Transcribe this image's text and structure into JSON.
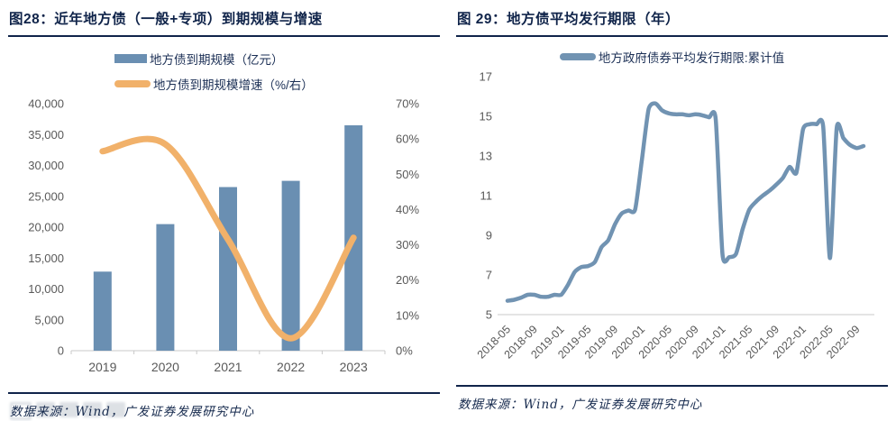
{
  "source": "数据来源：Wind，广发证券发展研究中心",
  "colors": {
    "navy": "#10244a",
    "bar_blue": "#6a8fb2",
    "orange": "#f1b16a",
    "line_blue": "#7193b2",
    "tick_gray": "#595959",
    "axis_gray": "#c8c8c8"
  },
  "chart_data": [
    {
      "id": "left-maturity-chart",
      "type": "bar",
      "title": "图28：近年地方债（一般+专项）到期规模与增速",
      "categories": [
        "2019",
        "2020",
        "2021",
        "2022",
        "2023"
      ],
      "series": [
        {
          "name": "地方债到期规模（亿元）",
          "type": "bar",
          "axis": "left",
          "values": [
            12800,
            20500,
            26500,
            27500,
            36500
          ]
        },
        {
          "name": "地方债到期规模增速（%/右）",
          "type": "line",
          "axis": "right",
          "values": [
            56.5,
            58.5,
            31.5,
            3.5,
            32
          ]
        }
      ],
      "left_axis": {
        "min": 0,
        "max": 40000,
        "step": 5000
      },
      "right_axis": {
        "min": 0,
        "max": 70,
        "step": 10,
        "suffix": "%"
      },
      "grid": false,
      "legend_position": "top"
    },
    {
      "id": "right-term-chart",
      "type": "line",
      "title": "图 29：地方债平均发行期限（年）",
      "series_name": "地方政府债券平均发行期限:累计值",
      "x": [
        "2018-05",
        "2018-06",
        "2018-07",
        "2018-08",
        "2018-09",
        "2018-10",
        "2018-11",
        "2018-12",
        "2019-01",
        "2019-02",
        "2019-03",
        "2019-04",
        "2019-05",
        "2019-06",
        "2019-07",
        "2019-08",
        "2019-09",
        "2019-10",
        "2019-11",
        "2019-12",
        "2020-01",
        "2020-02",
        "2020-03",
        "2020-04",
        "2020-05",
        "2020-06",
        "2020-07",
        "2020-08",
        "2020-09",
        "2020-10",
        "2020-11",
        "2020-12",
        "2021-01",
        "2021-02",
        "2021-03",
        "2021-04",
        "2021-05",
        "2021-06",
        "2021-07",
        "2021-08",
        "2021-09",
        "2021-10",
        "2021-11",
        "2021-12",
        "2022-01",
        "2022-02",
        "2022-03",
        "2022-04",
        "2022-05",
        "2022-06",
        "2022-07",
        "2022-08",
        "2022-09",
        "2022-10"
      ],
      "values": [
        5.7,
        5.75,
        5.85,
        6.0,
        6.0,
        5.9,
        5.9,
        6.0,
        6.0,
        6.5,
        7.15,
        7.4,
        7.45,
        7.65,
        8.4,
        8.75,
        9.55,
        10.1,
        10.25,
        10.3,
        12.8,
        15.35,
        15.65,
        15.3,
        15.15,
        15.1,
        15.1,
        15.05,
        15.1,
        15.05,
        14.95,
        14.85,
        8.05,
        7.9,
        8.05,
        9.3,
        10.3,
        10.7,
        11.0,
        11.25,
        11.55,
        11.9,
        12.45,
        12.15,
        14.35,
        14.6,
        14.6,
        14.45,
        7.85,
        14.4,
        13.9,
        13.55,
        13.4,
        13.5
      ],
      "y_axis": {
        "min": 5,
        "max": 17,
        "step": 2
      },
      "x_tick_every": 4,
      "grid": false,
      "legend_position": "top"
    }
  ]
}
